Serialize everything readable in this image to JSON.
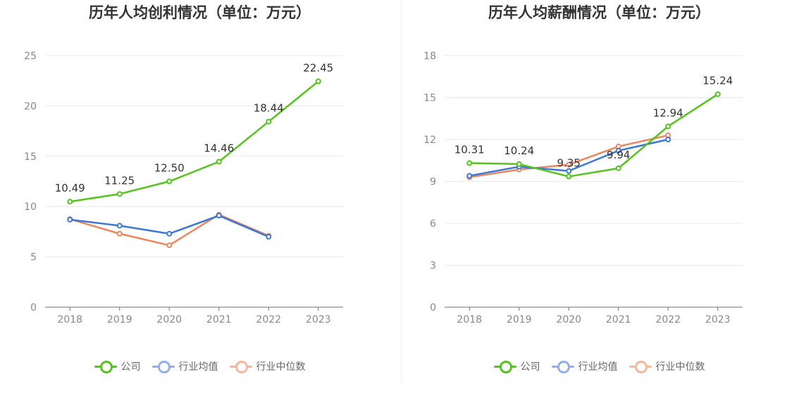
{
  "chart_data": [
    {
      "type": "line",
      "title": "历年人均创利情况（单位：万元）",
      "categories": [
        "2018",
        "2019",
        "2020",
        "2021",
        "2022",
        "2023"
      ],
      "ylim": [
        0,
        25
      ],
      "yticks": [
        0,
        5,
        10,
        15,
        20,
        25
      ],
      "legend_position": "bottom",
      "grid": true,
      "series": [
        {
          "name": "公司",
          "color": "#52c41a",
          "values": [
            10.49,
            11.25,
            12.5,
            14.46,
            18.44,
            22.45
          ],
          "labels": [
            "10.49",
            "11.25",
            "12.50",
            "14.46",
            "18.44",
            "22.45"
          ]
        },
        {
          "name": "行业均值",
          "color": "#3a78d8",
          "values": [
            8.7,
            8.1,
            7.3,
            9.1,
            7.0,
            null
          ],
          "labels": []
        },
        {
          "name": "行业中位数",
          "color": "#f0845a",
          "values": [
            8.75,
            7.3,
            6.15,
            9.2,
            7.1,
            null
          ],
          "labels": []
        }
      ]
    },
    {
      "type": "line",
      "title": "历年人均薪酬情况（单位：万元）",
      "categories": [
        "2018",
        "2019",
        "2020",
        "2021",
        "2022",
        "2023"
      ],
      "ylim": [
        0,
        18
      ],
      "yticks": [
        0,
        3,
        6,
        9,
        12,
        15,
        18
      ],
      "legend_position": "bottom",
      "grid": true,
      "series": [
        {
          "name": "公司",
          "color": "#52c41a",
          "values": [
            10.31,
            10.24,
            9.35,
            9.94,
            12.94,
            15.24
          ],
          "labels": [
            "10.31",
            "10.24",
            "9.35",
            "9.94",
            "12.94",
            "15.24"
          ]
        },
        {
          "name": "行业均值",
          "color": "#3a78d8",
          "values": [
            9.4,
            10.05,
            9.75,
            11.2,
            12.0,
            null
          ],
          "labels": []
        },
        {
          "name": "行业中位数",
          "color": "#f0845a",
          "values": [
            9.3,
            9.85,
            10.2,
            11.5,
            12.3,
            null
          ],
          "labels": []
        }
      ]
    }
  ],
  "legend": {
    "items": [
      {
        "label": "公司",
        "color": "#52c41a",
        "swatch_color": "#52c41a"
      },
      {
        "label": "行业均值",
        "color": "#3a78d8",
        "swatch_color": "#8fb0ea"
      },
      {
        "label": "行业中位数",
        "color": "#f0845a",
        "swatch_color": "#f7b59a"
      }
    ]
  }
}
